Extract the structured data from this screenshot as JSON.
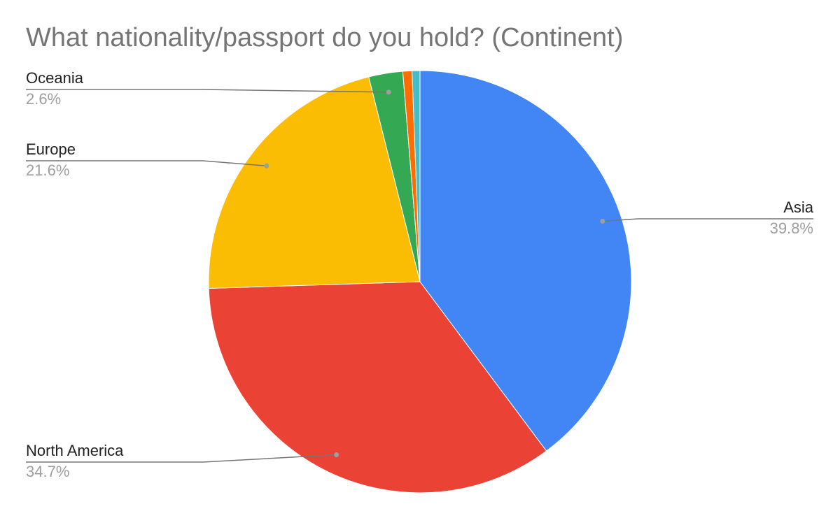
{
  "chart_data": {
    "type": "pie",
    "title": "What nationality/passport do you hold? (Continent)",
    "categories": [
      "Asia",
      "North America",
      "Europe",
      "Oceania",
      null,
      null
    ],
    "values": [
      39.8,
      34.7,
      21.6,
      2.6,
      0.7,
      0.6
    ],
    "value_labels": [
      "39.8%",
      "34.7%",
      "21.6%",
      "2.6%",
      null,
      null
    ],
    "colors": [
      "#4285f4",
      "#ea4335",
      "#fbbc04",
      "#34a853",
      "#ff6d01",
      "#46bdc6"
    ]
  }
}
